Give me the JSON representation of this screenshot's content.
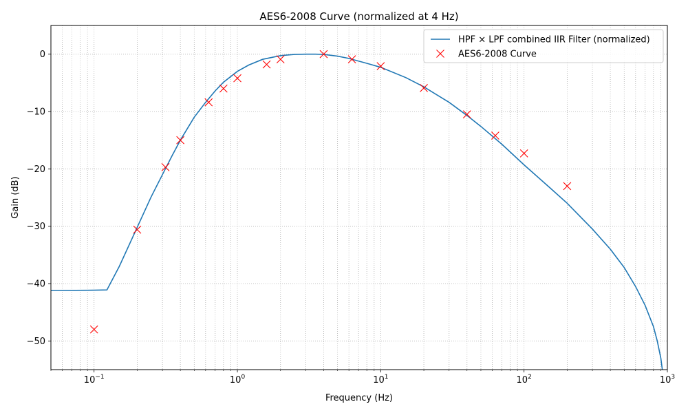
{
  "chart_data": {
    "type": "line",
    "title": "AES6-2008 Curve (normalized at 4 Hz)",
    "xlabel": "Frequency (Hz)",
    "ylabel": "Gain (dB)",
    "x_scale": "log",
    "xlim": [
      0.05,
      1000
    ],
    "ylim": [
      -55,
      5
    ],
    "grid": true,
    "legend_position": "upper right",
    "x_ticks": [
      {
        "value": 0.1,
        "base": "10",
        "exp": "−1"
      },
      {
        "value": 1,
        "base": "10",
        "exp": "0"
      },
      {
        "value": 10,
        "base": "10",
        "exp": "1"
      },
      {
        "value": 100,
        "base": "10",
        "exp": "2"
      },
      {
        "value": 1000,
        "base": "10",
        "exp": "3"
      }
    ],
    "y_ticks": [
      {
        "value": 0,
        "label": "0"
      },
      {
        "value": -10,
        "label": "−10"
      },
      {
        "value": -20,
        "label": "−20"
      },
      {
        "value": -30,
        "label": "−30"
      },
      {
        "value": -40,
        "label": "−40"
      },
      {
        "value": -50,
        "label": "−50"
      }
    ],
    "series": [
      {
        "name": "HPF × LPF combined IIR Filter (normalized)",
        "kind": "line",
        "color": "#1f77b4",
        "x": [
          0.05,
          0.1,
          0.123,
          0.15,
          0.2,
          0.25,
          0.3,
          0.35,
          0.4,
          0.5,
          0.6,
          0.7,
          0.8,
          1.0,
          1.2,
          1.5,
          2.0,
          2.5,
          3.0,
          3.5,
          4.0,
          5.0,
          6.0,
          8.0,
          10,
          15,
          20,
          30,
          40,
          50,
          70,
          100,
          150,
          200,
          300,
          400,
          500,
          600,
          700,
          800,
          850,
          900,
          950,
          1000
        ],
        "y": [
          -41.2,
          -41.15,
          -41.1,
          -37.0,
          -30.2,
          -24.9,
          -21.0,
          -17.7,
          -15.0,
          -11.0,
          -8.4,
          -6.4,
          -4.9,
          -3.0,
          -1.9,
          -0.9,
          -0.25,
          -0.05,
          0.0,
          0.0,
          -0.05,
          -0.35,
          -0.75,
          -1.6,
          -2.3,
          -4.1,
          -5.7,
          -8.4,
          -10.7,
          -12.6,
          -15.7,
          -19.3,
          -23.2,
          -26.0,
          -30.5,
          -34.0,
          -37.2,
          -40.5,
          -43.8,
          -47.5,
          -50.0,
          -53.0,
          -57.5,
          -62.0
        ]
      },
      {
        "name": "AES6-2008 Curve",
        "kind": "marker",
        "marker": "x",
        "color": "#ff0000",
        "x": [
          0.1,
          0.2,
          0.315,
          0.4,
          0.63,
          0.8,
          1.0,
          1.6,
          2.0,
          4.0,
          6.3,
          10,
          20,
          40,
          63,
          100,
          200
        ],
        "y": [
          -48.0,
          -30.6,
          -19.7,
          -15.0,
          -8.4,
          -6.0,
          -4.2,
          -1.8,
          -0.9,
          0.0,
          -0.9,
          -2.1,
          -5.9,
          -10.5,
          -14.2,
          -17.3,
          -23.0
        ]
      }
    ]
  }
}
